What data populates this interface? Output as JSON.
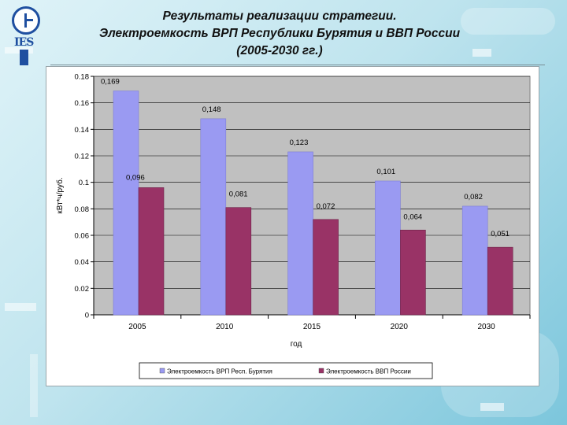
{
  "header": {
    "logo_text": "IES",
    "title_lines": [
      "Результаты реализации стратегии.",
      "Электроемкость ВРП Республики Бурятия и ВВП России",
      "(2005-2030 гг.)"
    ]
  },
  "chart_data": {
    "type": "bar",
    "categories": [
      "2005",
      "2010",
      "2015",
      "2020",
      "2030"
    ],
    "series": [
      {
        "name": "Электроемкость ВРП Респ. Бурятия",
        "values": [
          0.169,
          0.148,
          0.123,
          0.101,
          0.082
        ],
        "labels": [
          "0,169",
          "0,148",
          "0,123",
          "0,101",
          "0,082"
        ],
        "color": "#9a9af2"
      },
      {
        "name": "Электроемкость ВВП России",
        "values": [
          0.096,
          0.081,
          0.072,
          0.064,
          0.051
        ],
        "labels": [
          "0,096",
          "0,081",
          "0,072",
          "0,064",
          "0,051"
        ],
        "color": "#993366"
      }
    ],
    "xlabel": "год",
    "ylabel": "кВт*ч/руб.",
    "ylim": [
      0,
      0.18
    ],
    "yticks": [
      "0",
      "0.02",
      "0.04",
      "0.06",
      "0.08",
      "0.1",
      "0.12",
      "0.14",
      "0.16",
      "0.18"
    ],
    "grid": true,
    "plot_background": "#c0c0c0",
    "legend_position": "bottom"
  }
}
